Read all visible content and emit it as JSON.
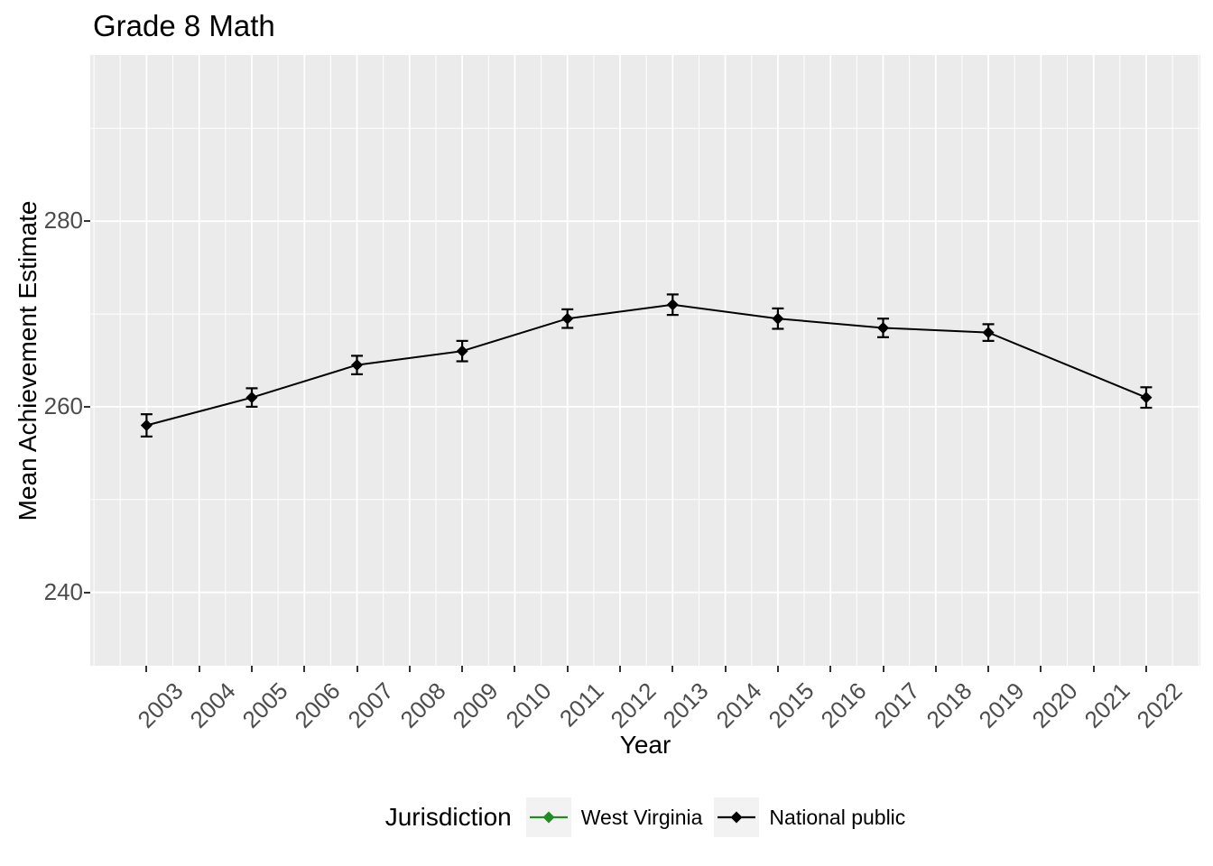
{
  "chart_data": {
    "type": "line",
    "title": "Grade 8 Math",
    "xlabel": "Year",
    "ylabel": "Mean Achievement Estimate",
    "x_ticks": [
      2003,
      2004,
      2005,
      2006,
      2007,
      2008,
      2009,
      2010,
      2011,
      2012,
      2013,
      2014,
      2015,
      2016,
      2017,
      2018,
      2019,
      2020,
      2021,
      2022
    ],
    "y_ticks": [
      240,
      260,
      280
    ],
    "y_minor_ticks": [
      250,
      270,
      290
    ],
    "xlim": [
      2001.93,
      2023.03
    ],
    "ylim": [
      232.1,
      297.9
    ],
    "grid": true,
    "legend_position": "bottom",
    "legend_title": "Jurisdiction",
    "series": [
      {
        "name": "West Virginia",
        "color": "#228B22",
        "marker": "diamond",
        "x": [],
        "y": [],
        "error": []
      },
      {
        "name": "National public",
        "color": "#000000",
        "marker": "diamond",
        "x": [
          2003,
          2005,
          2007,
          2009,
          2011,
          2013,
          2015,
          2017,
          2019,
          2022
        ],
        "y": [
          258,
          261,
          264.5,
          266,
          269.5,
          271,
          269.5,
          268.5,
          268,
          261
        ],
        "error": [
          1.2,
          1.0,
          1.0,
          1.1,
          1.0,
          1.1,
          1.1,
          1.0,
          0.9,
          1.1
        ]
      }
    ]
  },
  "colors": {
    "panel_bg": "#EBEBEB",
    "grid": "#FFFFFF",
    "axis_text": "#4D4D4D",
    "tick": "#333333",
    "legend_key_bg": "#F2F2F2",
    "text": "#000000"
  }
}
